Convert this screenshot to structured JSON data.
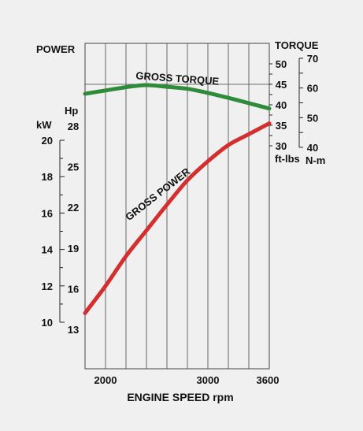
{
  "chart_data": {
    "type": "line",
    "x": [
      1800,
      2000,
      2200,
      2400,
      2600,
      2800,
      3000,
      3200,
      3400,
      3600
    ],
    "x_ticks": [
      2000,
      3000,
      3600
    ],
    "xlim": [
      1800,
      3600
    ],
    "xlabel": "ENGINE SPEED rpm",
    "power_axis_label": "POWER",
    "torque_axis_label": "TORQUE",
    "hp_unit": "Hp",
    "kw_unit": "kW",
    "ftlbs_unit": "ft-lbs",
    "nm_unit": "N-m",
    "hp_ticks": [
      13,
      16,
      19,
      22,
      25,
      28
    ],
    "kw_ticks": [
      10,
      12,
      14,
      16,
      18,
      20
    ],
    "ftlbs_ticks": [
      30,
      35,
      40,
      45,
      50
    ],
    "nm_ticks": [
      40,
      50,
      60,
      70
    ],
    "hp_range": [
      13,
      28
    ],
    "ftlbs_range": [
      30,
      50
    ],
    "series": [
      {
        "name": "GROSS TORQUE",
        "color": "#2e8b3a",
        "axis": "ftlbs",
        "values": [
          42.7,
          43.5,
          44.3,
          44.8,
          44.4,
          43.9,
          42.9,
          41.7,
          40.4,
          39.1
        ]
      },
      {
        "name": "GROSS POWER",
        "color": "#d42f2f",
        "axis": "hp",
        "values": [
          14.2,
          16.2,
          18.4,
          20.3,
          22.2,
          24.0,
          25.4,
          26.6,
          27.4,
          28.2
        ]
      }
    ]
  }
}
